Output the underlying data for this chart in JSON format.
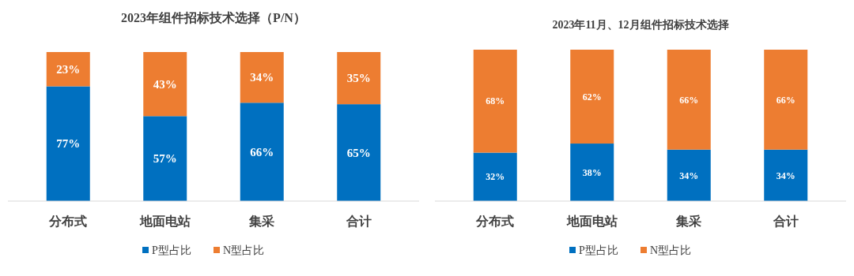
{
  "chart_data": [
    {
      "type": "bar",
      "title": "2023年组件招标技术选择（P/N）",
      "categories": [
        "分布式",
        "地面电站",
        "集采",
        "合计"
      ],
      "stacked": true,
      "legend": "bottom",
      "series": [
        {
          "name": "P型占比",
          "color": "#0070c0",
          "values": [
            77,
            57,
            66,
            65
          ],
          "value_labels": [
            "77%",
            "57%",
            "66%",
            "65%"
          ]
        },
        {
          "name": "N型占比",
          "color": "#ed7d31",
          "values": [
            23,
            43,
            34,
            35
          ],
          "value_labels": [
            "23%",
            "43%",
            "34%",
            "35%"
          ]
        }
      ]
    },
    {
      "type": "bar",
      "title": "2023年11月、12月组件招标技术选择",
      "categories": [
        "分布式",
        "地面电站",
        "集采",
        "合计"
      ],
      "stacked": true,
      "legend": "bottom",
      "series": [
        {
          "name": "P型占比",
          "color": "#0070c0",
          "values": [
            32,
            38,
            34,
            34
          ],
          "value_labels": [
            "32%",
            "38%",
            "34%",
            "34%"
          ]
        },
        {
          "name": "N型占比",
          "color": "#ed7d31",
          "values": [
            68,
            62,
            66,
            66
          ],
          "value_labels": [
            "68%",
            "62%",
            "66%",
            "66%"
          ]
        }
      ]
    }
  ]
}
